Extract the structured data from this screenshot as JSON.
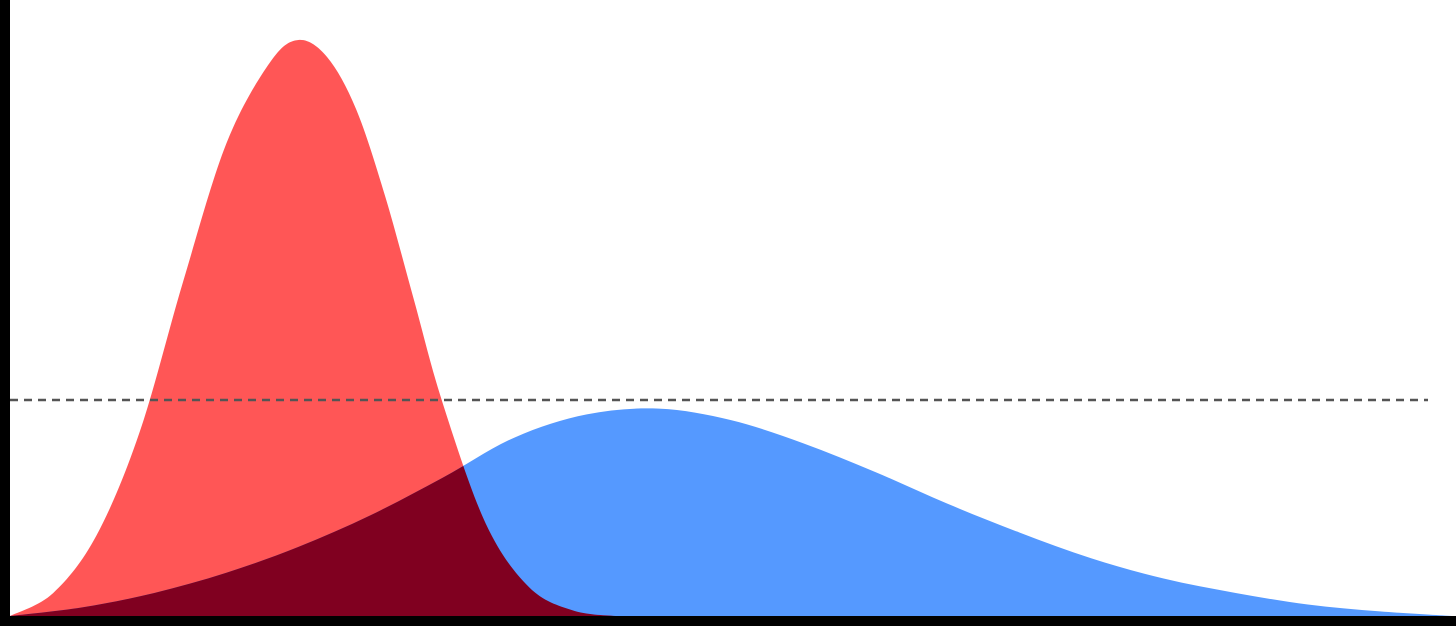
{
  "chart_data": {
    "type": "area",
    "title": "",
    "xlabel": "",
    "ylabel": "",
    "xlim": [
      0,
      100
    ],
    "ylim": [
      0,
      1
    ],
    "grid": false,
    "legend": "none",
    "reference_line": {
      "y": 0.375,
      "style": "dashed",
      "color": "#555555"
    },
    "overlap_color": "#800020",
    "series": [
      {
        "color": "#ff5656",
        "x": [
          0,
          3,
          6,
          9,
          12,
          15,
          18,
          20,
          22,
          24,
          26,
          28,
          30,
          33,
          36,
          39,
          42,
          44
        ],
        "values": [
          0.0,
          0.04,
          0.14,
          0.32,
          0.58,
          0.82,
          0.96,
          1.0,
          0.97,
          0.88,
          0.73,
          0.55,
          0.37,
          0.16,
          0.05,
          0.01,
          0.0,
          0.0
        ]
      },
      {
        "color": "#5599ff",
        "x": [
          0,
          5,
          10,
          15,
          20,
          25,
          30,
          35,
          40,
          45,
          50,
          55,
          60,
          65,
          70,
          75,
          80,
          85,
          90,
          95,
          100
        ],
        "values": [
          0.0,
          0.015,
          0.04,
          0.075,
          0.12,
          0.175,
          0.24,
          0.31,
          0.35,
          0.36,
          0.34,
          0.3,
          0.25,
          0.195,
          0.145,
          0.1,
          0.065,
          0.04,
          0.02,
          0.008,
          0.0
        ]
      }
    ]
  }
}
